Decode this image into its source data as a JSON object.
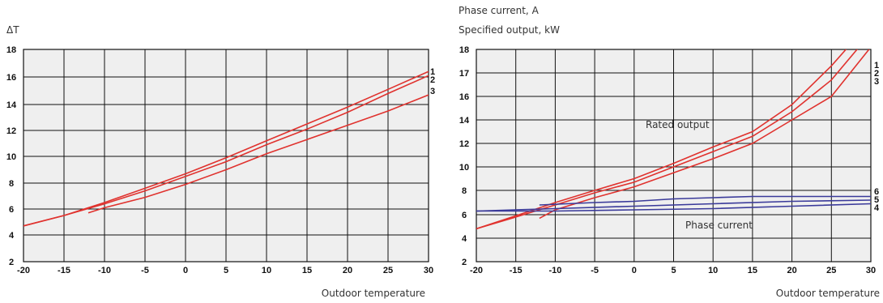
{
  "chart_data": [
    {
      "type": "line",
      "ylabel": "ΔT",
      "xlabel": "Outdoor temperature",
      "xlim": [
        -20,
        30
      ],
      "ylim": [
        2,
        18
      ],
      "x_ticks": [
        "-20",
        "-15",
        "-10",
        "-5",
        "0",
        "5",
        "10",
        "15",
        "20",
        "25",
        "30"
      ],
      "y_ticks": [
        "2",
        "4",
        "6",
        "8",
        "10",
        "12",
        "14",
        "16",
        "18"
      ],
      "grid": true,
      "series": [
        {
          "name": "1",
          "color": "#e0322e",
          "x": [
            -20,
            -15,
            -10,
            -5,
            0,
            5,
            10,
            15,
            20,
            25,
            30
          ],
          "y": [
            4.7,
            5.5,
            6.5,
            7.6,
            8.7,
            9.9,
            11.2,
            12.5,
            13.8,
            15.1,
            16.4
          ]
        },
        {
          "name": "2",
          "color": "#e0322e",
          "x": [
            -20,
            -15,
            -10,
            -5,
            0,
            5,
            10,
            15,
            20,
            25,
            30
          ],
          "y": [
            4.7,
            5.5,
            6.4,
            7.4,
            8.5,
            9.6,
            10.9,
            12.1,
            13.4,
            14.8,
            16.1
          ]
        },
        {
          "name": "3",
          "color": "#e0322e",
          "x": [
            -12,
            -10,
            -5,
            0,
            5,
            10,
            15,
            20,
            25,
            30
          ],
          "y": [
            5.7,
            6.1,
            6.9,
            7.9,
            9.0,
            10.2,
            11.3,
            12.4,
            13.5,
            14.7
          ]
        }
      ]
    },
    {
      "type": "line",
      "ylabel_lines": [
        "Phase current, A",
        "Specified output, kW"
      ],
      "xlabel": "Outdoor temperature",
      "xlim": [
        -20,
        30
      ],
      "ylim": [
        2,
        18
      ],
      "x_ticks": [
        "-20",
        "-15",
        "-10",
        "-5",
        "0",
        "5",
        "10",
        "15",
        "20",
        "25",
        "30"
      ],
      "y_ticks": [
        "2",
        "4",
        "6",
        "8",
        "10",
        "12",
        "14",
        "16",
        "17",
        "18"
      ],
      "grid": true,
      "annotations": [
        "Rated output",
        "Phase current"
      ],
      "series": [
        {
          "name": "1",
          "color": "#e0322e",
          "x": [
            -20,
            -15,
            -10,
            -5,
            0,
            5,
            10,
            15,
            20,
            25,
            30
          ],
          "y": [
            4.8,
            5.9,
            7.0,
            8.0,
            9.0,
            10.3,
            11.7,
            13.0,
            15.3,
            17.3,
            19.2
          ]
        },
        {
          "name": "2",
          "color": "#e0322e",
          "x": [
            -20,
            -15,
            -10,
            -5,
            0,
            5,
            10,
            15,
            20,
            25,
            30
          ],
          "y": [
            4.8,
            5.8,
            6.8,
            7.8,
            8.7,
            10.0,
            11.3,
            12.6,
            14.7,
            16.7,
            18.7
          ]
        },
        {
          "name": "3",
          "color": "#e0322e",
          "x": [
            -12,
            -10,
            -5,
            0,
            5,
            10,
            15,
            20,
            25,
            30
          ],
          "y": [
            5.7,
            6.4,
            7.4,
            8.3,
            9.5,
            10.7,
            12.0,
            14.0,
            16.0,
            18.1
          ]
        },
        {
          "name": "6",
          "color": "#3a3a9a",
          "x": [
            -12,
            -5,
            0,
            5,
            10,
            15,
            20,
            25,
            30
          ],
          "y": [
            6.8,
            7.0,
            7.1,
            7.3,
            7.4,
            7.5,
            7.5,
            7.5,
            7.5
          ]
        },
        {
          "name": "5",
          "color": "#3a3a9a",
          "x": [
            -20,
            -10,
            0,
            10,
            20,
            30
          ],
          "y": [
            6.3,
            6.5,
            6.7,
            6.9,
            7.1,
            7.2
          ]
        },
        {
          "name": "4",
          "color": "#3a3a9a",
          "x": [
            -20,
            -10,
            0,
            10,
            20,
            30
          ],
          "y": [
            6.3,
            6.3,
            6.4,
            6.5,
            6.7,
            6.9
          ]
        }
      ]
    }
  ]
}
